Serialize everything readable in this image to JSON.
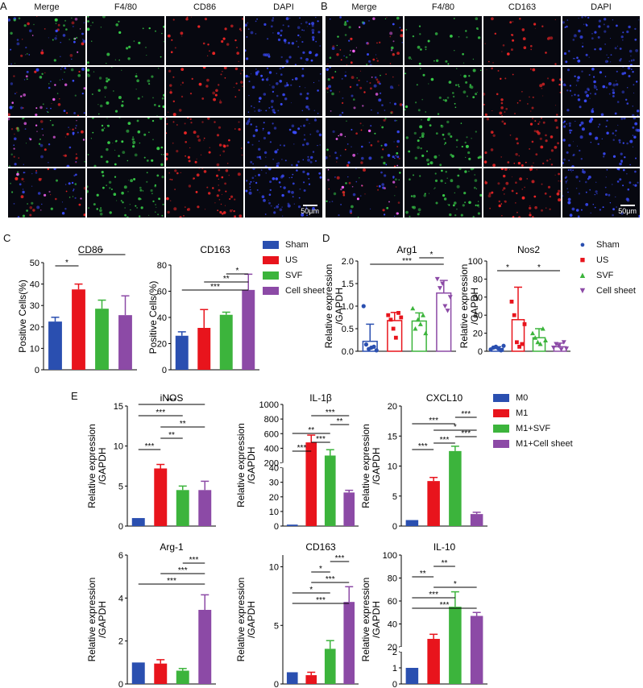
{
  "panels": {
    "A": "A",
    "B": "B",
    "C": "C",
    "D": "D",
    "E": "E"
  },
  "panelA": {
    "headers": [
      "Merge",
      "F4/80",
      "CD86",
      "DAPI"
    ],
    "scale_bar": "50μm"
  },
  "panelB": {
    "headers": [
      "Merge",
      "F4/80",
      "CD163",
      "DAPI"
    ],
    "scale_bar": "50μm"
  },
  "colors": {
    "blue": "#2a4fb0",
    "red": "#e8141c",
    "green": "#3cb43c",
    "purple": "#8c4aa6"
  },
  "legendC": [
    "Sham",
    "US",
    "SVF",
    "Cell sheet"
  ],
  "legendD": [
    "Sham",
    "US",
    "SVF",
    "Cell sheet"
  ],
  "legendE": [
    "M0",
    "M1",
    "M1+SVF",
    "M1+Cell sheet"
  ],
  "chart_data": [
    {
      "id": "C1",
      "type": "bar",
      "title": "CD86",
      "ylabel": "Positive Cells(%)",
      "categories": [
        "Sham",
        "US",
        "SVF",
        "Cell sheet"
      ],
      "values": [
        22.5,
        37.5,
        28.5,
        25.5
      ],
      "errors": [
        2,
        2.5,
        4,
        9
      ],
      "ylim": [
        0,
        50
      ],
      "yticks": [
        "0",
        "10",
        "20",
        "30",
        "40",
        "50"
      ],
      "significance": [
        {
          "a": 0,
          "b": 1,
          "label": "*"
        },
        {
          "a": 1,
          "b": 3,
          "label": "*"
        }
      ]
    },
    {
      "id": "C2",
      "type": "bar",
      "title": "CD163",
      "ylabel": "Positive Cells(%)",
      "categories": [
        "Sham",
        "US",
        "SVF",
        "Cell sheet"
      ],
      "values": [
        26,
        32,
        42,
        61
      ],
      "errors": [
        3,
        14,
        2,
        12
      ],
      "ylim": [
        0,
        80
      ],
      "yticks": [
        "0",
        "20",
        "40",
        "60",
        "80"
      ],
      "significance": [
        {
          "a": 0,
          "b": 3,
          "label": "***"
        },
        {
          "a": 1,
          "b": 3,
          "label": "**"
        },
        {
          "a": 2,
          "b": 3,
          "label": "*"
        }
      ]
    },
    {
      "id": "D1",
      "type": "bar",
      "title": "Arg1",
      "ylabel": "Relative expression /GAPDH",
      "categories": [
        "Sham",
        "US",
        "SVF",
        "Cell sheet"
      ],
      "values": [
        0.22,
        0.68,
        0.67,
        1.29
      ],
      "errors": [
        0.38,
        0.18,
        0.18,
        0.28
      ],
      "ylim": [
        0,
        2.0
      ],
      "yticks": [
        "0.0",
        "0.5",
        "1.0",
        "1.5",
        "2.0"
      ],
      "points": [
        [
          1.0,
          0.15,
          0.05,
          0.08,
          0.1,
          0.02
        ],
        [
          0.8,
          0.7,
          0.5,
          0.3,
          0.85,
          0.75
        ],
        [
          0.95,
          0.5,
          0.7,
          0.6,
          0.8,
          0.4
        ],
        [
          1.6,
          1.4,
          1.5,
          1.0,
          0.9,
          1.2
        ]
      ],
      "significance": [
        {
          "a": 0,
          "b": 3,
          "label": "***"
        },
        {
          "a": 2,
          "b": 3,
          "label": "*"
        }
      ]
    },
    {
      "id": "D2",
      "type": "bar",
      "title": "Nos2",
      "ylabel": "Relative expression /GAPDH",
      "categories": [
        "Sham",
        "US",
        "SVF",
        "Cell sheet"
      ],
      "values": [
        3,
        35,
        15,
        5
      ],
      "errors": [
        2,
        36,
        10,
        4
      ],
      "ylim": [
        0,
        100
      ],
      "yticks": [
        "0",
        "20",
        "40",
        "60",
        "80",
        "100"
      ],
      "points": [
        [
          2,
          4,
          5,
          3,
          1,
          6
        ],
        [
          55,
          40,
          10,
          5,
          8,
          30
        ],
        [
          20,
          15,
          10,
          8,
          25,
          12
        ],
        [
          4,
          8,
          6,
          2,
          10,
          3
        ]
      ],
      "significance": [
        {
          "a": 0,
          "b": 1,
          "label": "*"
        },
        {
          "a": 1,
          "b": 3,
          "label": "*"
        }
      ]
    },
    {
      "id": "E1",
      "type": "bar",
      "title": "iNOS",
      "ylabel": "Relative expression /GAPDH",
      "categories": [
        "M0",
        "M1",
        "M1+SVF",
        "M1+Cell sheet"
      ],
      "values": [
        1,
        7.2,
        4.5,
        4.5
      ],
      "errors": [
        0,
        0.5,
        0.5,
        1.1
      ],
      "ylim": [
        0,
        15
      ],
      "yticks": [
        "0",
        "5",
        "10",
        "15"
      ],
      "significance": [
        {
          "a": 0,
          "b": 1,
          "label": "***"
        },
        {
          "a": 1,
          "b": 2,
          "label": "**"
        },
        {
          "a": 1,
          "b": 3,
          "label": "**"
        },
        {
          "a": 0,
          "b": 2,
          "label": "***"
        },
        {
          "a": 0,
          "b": 3,
          "label": "***"
        }
      ]
    },
    {
      "id": "E2",
      "type": "bar",
      "title": "IL-1β",
      "ylabel": "Relative expression /GAPDH",
      "categories": [
        "M0",
        "M1",
        "M1+SVF",
        "M1+Cell sheet"
      ],
      "values": [
        1,
        480,
        300,
        23
      ],
      "errors": [
        0,
        100,
        80,
        1.5
      ],
      "ylim": [
        0,
        1000
      ],
      "broken": true,
      "yticks_low": [
        "0",
        "10",
        "20",
        "30",
        "40"
      ],
      "yticks_high": [
        "200",
        "400",
        "600",
        "800",
        "1000"
      ],
      "significance": [
        {
          "a": 0,
          "b": 1,
          "label": "***"
        },
        {
          "a": 1,
          "b": 2,
          "label": "***"
        },
        {
          "a": 0,
          "b": 2,
          "label": "**"
        },
        {
          "a": 2,
          "b": 3,
          "label": "**"
        },
        {
          "a": 1,
          "b": 3,
          "label": "***"
        }
      ]
    },
    {
      "id": "E3",
      "type": "bar",
      "title": "CXCL10",
      "ylabel": "Relative expression /GAPDH",
      "categories": [
        "M0",
        "M1",
        "M1+SVF",
        "M1+Cell sheet"
      ],
      "values": [
        1,
        7.5,
        12.5,
        2
      ],
      "errors": [
        0,
        0.6,
        0.8,
        0.3
      ],
      "ylim": [
        0,
        20
      ],
      "yticks": [
        "0",
        "5",
        "10",
        "15",
        "20"
      ],
      "significance": [
        {
          "a": 0,
          "b": 1,
          "label": "***"
        },
        {
          "a": 1,
          "b": 2,
          "label": "***"
        },
        {
          "a": 2,
          "b": 3,
          "label": "***"
        },
        {
          "a": 1,
          "b": 3,
          "label": "*"
        },
        {
          "a": 0,
          "b": 2,
          "label": "***"
        },
        {
          "a": 2,
          "b": 3,
          "label": "***"
        }
      ]
    },
    {
      "id": "E4",
      "type": "bar",
      "title": "Arg-1",
      "ylabel": "Relative expression /GAPDH",
      "categories": [
        "M0",
        "M1",
        "M1+SVF",
        "M1+Cell sheet"
      ],
      "values": [
        1,
        0.95,
        0.62,
        3.45
      ],
      "errors": [
        0,
        0.18,
        0.1,
        0.7
      ],
      "ylim": [
        0,
        6
      ],
      "yticks": [
        "0",
        "2",
        "4",
        "6"
      ],
      "significance": [
        {
          "a": 0,
          "b": 3,
          "label": "***"
        },
        {
          "a": 1,
          "b": 3,
          "label": "***"
        },
        {
          "a": 2,
          "b": 3,
          "label": "***"
        }
      ]
    },
    {
      "id": "E5",
      "type": "bar",
      "title": "CD163",
      "ylabel": "Relative expression /GAPDH",
      "categories": [
        "M0",
        "M1",
        "M1+SVF",
        "M1+Cell sheet"
      ],
      "values": [
        1,
        0.75,
        3.0,
        7.0
      ],
      "errors": [
        0,
        0.25,
        0.7,
        1.3
      ],
      "ylim": [
        0,
        11
      ],
      "yticks": [
        "0",
        "5",
        "10"
      ],
      "significance": [
        {
          "a": 0,
          "b": 3,
          "label": "***"
        },
        {
          "a": 0,
          "b": 2,
          "label": "*"
        },
        {
          "a": 1,
          "b": 3,
          "label": "***"
        },
        {
          "a": 1,
          "b": 2,
          "label": "*"
        },
        {
          "a": 2,
          "b": 3,
          "label": "***"
        }
      ]
    },
    {
      "id": "E6",
      "type": "bar",
      "title": "IL-10",
      "ylabel": "Relative expression /GAPDH",
      "categories": [
        "M0",
        "M1",
        "M1+SVF",
        "M1+Cell sheet"
      ],
      "values": [
        1,
        27,
        55,
        47
      ],
      "errors": [
        0,
        4,
        13,
        3
      ],
      "ylim": [
        0,
        100
      ],
      "broken": true,
      "yticks_low": [
        "0",
        "1",
        "2"
      ],
      "yticks_high": [
        "20",
        "40",
        "60",
        "80",
        "100"
      ],
      "significance": [
        {
          "a": 0,
          "b": 3,
          "label": "***"
        },
        {
          "a": 0,
          "b": 2,
          "label": "***"
        },
        {
          "a": 1,
          "b": 3,
          "label": "*"
        },
        {
          "a": 0,
          "b": 1,
          "label": "**"
        },
        {
          "a": 1,
          "b": 2,
          "label": "**"
        }
      ]
    }
  ]
}
